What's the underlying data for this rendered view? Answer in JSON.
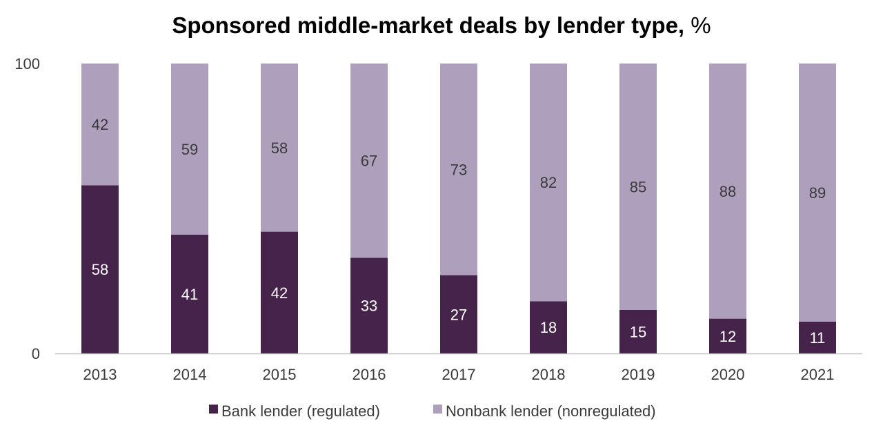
{
  "chart_data": {
    "type": "bar",
    "stacked": true,
    "title": "Sponsored middle-market deals by lender type,",
    "title_unit": "%",
    "categories": [
      "2013",
      "2014",
      "2015",
      "2016",
      "2017",
      "2018",
      "2019",
      "2020",
      "2021"
    ],
    "series": [
      {
        "name": "Bank lender (regulated)",
        "color": "#46234a",
        "label_color": "#ffffff",
        "values": [
          58,
          41,
          42,
          33,
          27,
          18,
          15,
          12,
          11
        ]
      },
      {
        "name": "Nonbank lender (nonregulated)",
        "color": "#aea0bd",
        "label_color": "#3a3a3a",
        "values": [
          42,
          59,
          58,
          67,
          73,
          82,
          85,
          88,
          89
        ]
      }
    ],
    "ylim": [
      0,
      100
    ],
    "yticks": [
      "0",
      "100"
    ],
    "grid": false,
    "legend_position": "bottom"
  }
}
